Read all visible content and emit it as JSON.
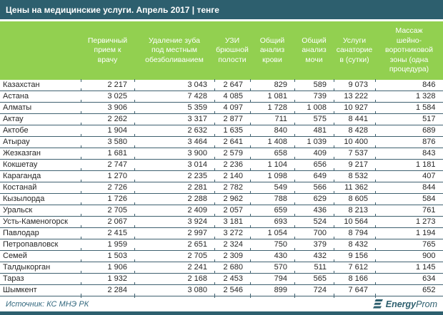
{
  "title": "Цены на медицинские услуги. Апрель 2017 | тенге",
  "table": {
    "columns": [
      "",
      "Первичный\nприем к\nврачу",
      "Удаление зуба\nпод местным\nобезболиванием",
      "УЗИ\nбрюшной\nполости",
      "Общий\nанализ\nкрови",
      "Общий\nанализ\nмочи",
      "Услуги\nсанаторие\nв (сутки)",
      "Массаж\nшейно-\nворотниковой\nзоны (одна\nпроцедура)"
    ],
    "rows": [
      {
        "city": "Казахстан",
        "values": [
          "2 217",
          "3 043",
          "2 647",
          "829",
          "589",
          "9 073",
          "846"
        ]
      },
      {
        "city": "Астана",
        "values": [
          "3 025",
          "7 428",
          "4 085",
          "1 081",
          "739",
          "13 222",
          "1 328"
        ]
      },
      {
        "city": "Алматы",
        "values": [
          "3 906",
          "5 359",
          "4 097",
          "1 728",
          "1 008",
          "10 927",
          "1 584"
        ]
      },
      {
        "city": "Актау",
        "values": [
          "2 262",
          "3 317",
          "2 877",
          "711",
          "575",
          "8 441",
          "517"
        ]
      },
      {
        "city": "Актобе",
        "values": [
          "1 904",
          "2 632",
          "1 635",
          "840",
          "481",
          "8 428",
          "689"
        ]
      },
      {
        "city": "Атырау",
        "values": [
          "3 580",
          "3 464",
          "2 641",
          "1 408",
          "1 039",
          "10 400",
          "876"
        ]
      },
      {
        "city": "Жезказган",
        "values": [
          "1 681",
          "3 900",
          "2 579",
          "658",
          "409",
          "7 537",
          "843"
        ]
      },
      {
        "city": "Кокшетау",
        "values": [
          "2 747",
          "3 014",
          "2 236",
          "1 104",
          "656",
          "9 217",
          "1 181"
        ]
      },
      {
        "city": "Караганда",
        "values": [
          "1 270",
          "2 235",
          "2 140",
          "1 098",
          "649",
          "8 532",
          "407"
        ]
      },
      {
        "city": "Костанай",
        "values": [
          "2 726",
          "2 281",
          "2 782",
          "549",
          "566",
          "11 362",
          "844"
        ]
      },
      {
        "city": "Кызылорда",
        "values": [
          "1 726",
          "2 288",
          "2 962",
          "788",
          "629",
          "8 605",
          "584"
        ]
      },
      {
        "city": "Уральск",
        "values": [
          "2 705",
          "2 409",
          "2 057",
          "659",
          "436",
          "8 213",
          "761"
        ]
      },
      {
        "city": "Усть-Каменогорск",
        "values": [
          "2 067",
          "3 924",
          "3 181",
          "693",
          "524",
          "10 564",
          "1 273"
        ]
      },
      {
        "city": "Павлодар",
        "values": [
          "2 415",
          "2 997",
          "3 272",
          "1 054",
          "700",
          "8 794",
          "1 194"
        ]
      },
      {
        "city": "Петропавловск",
        "values": [
          "1 959",
          "2 651",
          "2 324",
          "750",
          "379",
          "8 432",
          "765"
        ]
      },
      {
        "city": "Семей",
        "values": [
          "1 503",
          "2 705",
          "2 309",
          "430",
          "432",
          "9 156",
          "900"
        ]
      },
      {
        "city": "Талдыкорган",
        "values": [
          "1 906",
          "2 241",
          "2 680",
          "570",
          "511",
          "7 612",
          "1 145"
        ]
      },
      {
        "city": "Тараз",
        "values": [
          "1 932",
          "2 168",
          "2 453",
          "794",
          "565",
          "8 166",
          "634"
        ]
      },
      {
        "city": "Шымкент",
        "values": [
          "2 284",
          "3 080",
          "2 546",
          "899",
          "724",
          "7 647",
          "652"
        ]
      }
    ]
  },
  "footer": {
    "source": "Источник: КС МНЭ РК",
    "logo_bold": "Energy",
    "logo_regular": "Prom"
  },
  "colors": {
    "title_bar": "#2d5f6e",
    "header_green": "#92d050",
    "row_border": "#3f6170",
    "text": "#262626",
    "footer_teal": "#33687e"
  },
  "chart_data": {
    "type": "table",
    "title": "Цены на медицинские услуги. Апрель 2017 | тенге",
    "unit": "тенге",
    "source": "КС МНЭ РК",
    "categories": [
      "Казахстан",
      "Астана",
      "Алматы",
      "Актау",
      "Актобе",
      "Атырау",
      "Жезказган",
      "Кокшетау",
      "Караганда",
      "Костанай",
      "Кызылорда",
      "Уральск",
      "Усть-Каменогорск",
      "Павлодар",
      "Петропавловск",
      "Семей",
      "Талдыкорган",
      "Тараз",
      "Шымкент"
    ],
    "series": [
      {
        "name": "Первичный прием к врачу",
        "values": [
          2217,
          3025,
          3906,
          2262,
          1904,
          3580,
          1681,
          2747,
          1270,
          2726,
          1726,
          2705,
          2067,
          2415,
          1959,
          1503,
          1906,
          1932,
          2284
        ]
      },
      {
        "name": "Удаление зуба под местным обезболиванием",
        "values": [
          3043,
          7428,
          5359,
          3317,
          2632,
          3464,
          3900,
          3014,
          2235,
          2281,
          2288,
          2409,
          3924,
          2997,
          2651,
          2705,
          2241,
          2168,
          3080
        ]
      },
      {
        "name": "УЗИ брюшной полости",
        "values": [
          2647,
          4085,
          4097,
          2877,
          1635,
          2641,
          2579,
          2236,
          2140,
          2782,
          2962,
          2057,
          3181,
          3272,
          2324,
          2309,
          2680,
          2453,
          2546
        ]
      },
      {
        "name": "Общий анализ крови",
        "values": [
          829,
          1081,
          1728,
          711,
          840,
          1408,
          658,
          1104,
          1098,
          549,
          788,
          659,
          693,
          1054,
          750,
          430,
          570,
          794,
          899
        ]
      },
      {
        "name": "Общий анализ мочи",
        "values": [
          589,
          739,
          1008,
          575,
          481,
          1039,
          409,
          656,
          649,
          566,
          629,
          436,
          524,
          700,
          379,
          432,
          511,
          565,
          724
        ]
      },
      {
        "name": "Услуги санаториев (сутки)",
        "values": [
          9073,
          13222,
          10927,
          8441,
          8428,
          10400,
          7537,
          9217,
          8532,
          11362,
          8605,
          8213,
          10564,
          8794,
          8432,
          9156,
          7612,
          8166,
          7647
        ]
      },
      {
        "name": "Массаж шейно-воротниковой зоны (одна процедура)",
        "values": [
          846,
          1328,
          1584,
          517,
          689,
          876,
          843,
          1181,
          407,
          844,
          584,
          761,
          1273,
          1194,
          765,
          900,
          1145,
          634,
          652
        ]
      }
    ]
  }
}
